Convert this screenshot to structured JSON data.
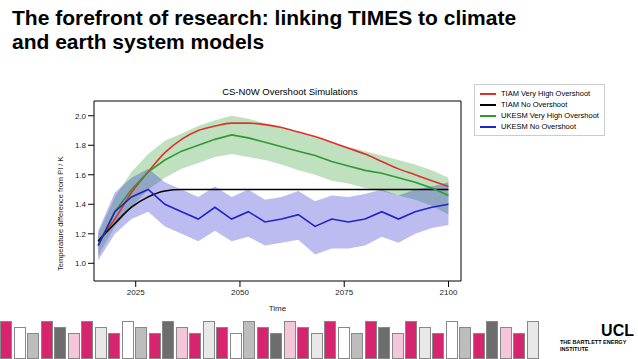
{
  "title": "The forefront of research: linking TIMES to climate and earth system models",
  "footer": {
    "logo": "UCL",
    "logo_subtitle": "THE BARTLETT ENERGY INSTITUTE"
  },
  "chart_data": {
    "type": "line",
    "title": "CS-N0W Overshoot Simulations",
    "x_label": "Time",
    "y_label": "Temperature difference from PI / K",
    "x": [
      2016,
      2020,
      2024,
      2028,
      2032,
      2036,
      2040,
      2044,
      2048,
      2052,
      2056,
      2060,
      2064,
      2068,
      2072,
      2076,
      2080,
      2084,
      2088,
      2092,
      2096,
      2100
    ],
    "xlim": [
      2015,
      2103
    ],
    "xticks": [
      2025,
      2050,
      2075,
      2100
    ],
    "ylim": [
      0.88,
      2.1
    ],
    "yticks": [
      {
        "value": 1.0,
        "label": "1.0"
      },
      {
        "value": 1.2,
        "label": "1.2"
      },
      {
        "value": 1.4,
        "label": "1.4"
      },
      {
        "value": 1.6,
        "label": "1.6"
      },
      {
        "value": 1.8,
        "label": "1.8"
      },
      {
        "value": 2.0,
        "label": "2.0"
      }
    ],
    "grid": false,
    "legend": "right",
    "series": [
      {
        "name": "TIAM Very High Overshoot",
        "color": "#e0302a",
        "values": [
          1.15,
          1.3,
          1.48,
          1.62,
          1.75,
          1.84,
          1.9,
          1.93,
          1.95,
          1.95,
          1.94,
          1.92,
          1.89,
          1.86,
          1.82,
          1.78,
          1.74,
          1.69,
          1.64,
          1.6,
          1.56,
          1.52
        ]
      },
      {
        "name": "TIAM No Overshoot",
        "color": "#000000",
        "values": [
          1.15,
          1.27,
          1.38,
          1.45,
          1.49,
          1.5,
          1.5,
          1.5,
          1.5,
          1.5,
          1.5,
          1.5,
          1.5,
          1.5,
          1.5,
          1.5,
          1.5,
          1.5,
          1.5,
          1.5,
          1.5,
          1.5
        ]
      },
      {
        "name": "UKESM Very High Overshoot",
        "color": "#2f9a2f",
        "values": [
          1.12,
          1.35,
          1.5,
          1.62,
          1.7,
          1.76,
          1.8,
          1.84,
          1.87,
          1.85,
          1.82,
          1.79,
          1.76,
          1.73,
          1.69,
          1.66,
          1.63,
          1.61,
          1.58,
          1.55,
          1.51,
          1.46
        ],
        "low": [
          1.05,
          1.25,
          1.38,
          1.5,
          1.58,
          1.64,
          1.68,
          1.72,
          1.74,
          1.72,
          1.7,
          1.67,
          1.63,
          1.6,
          1.56,
          1.54,
          1.51,
          1.49,
          1.46,
          1.43,
          1.39,
          1.33
        ],
        "high": [
          1.2,
          1.45,
          1.62,
          1.74,
          1.83,
          1.88,
          1.93,
          1.97,
          2.0,
          1.98,
          1.95,
          1.92,
          1.89,
          1.86,
          1.82,
          1.79,
          1.76,
          1.73,
          1.7,
          1.67,
          1.63,
          1.58
        ]
      },
      {
        "name": "UKESM No Overshoot",
        "color": "#2222cc",
        "values": [
          1.12,
          1.35,
          1.45,
          1.5,
          1.4,
          1.35,
          1.3,
          1.38,
          1.3,
          1.35,
          1.28,
          1.3,
          1.33,
          1.25,
          1.3,
          1.28,
          1.3,
          1.35,
          1.3,
          1.35,
          1.38,
          1.4
        ],
        "low": [
          1.02,
          1.2,
          1.3,
          1.35,
          1.25,
          1.2,
          1.15,
          1.22,
          1.15,
          1.18,
          1.12,
          1.14,
          1.16,
          1.06,
          1.1,
          1.1,
          1.12,
          1.18,
          1.14,
          1.2,
          1.24,
          1.26
        ],
        "high": [
          1.22,
          1.48,
          1.58,
          1.64,
          1.55,
          1.5,
          1.45,
          1.52,
          1.45,
          1.5,
          1.43,
          1.45,
          1.49,
          1.42,
          1.46,
          1.45,
          1.47,
          1.5,
          1.46,
          1.5,
          1.52,
          1.55
        ]
      }
    ]
  }
}
